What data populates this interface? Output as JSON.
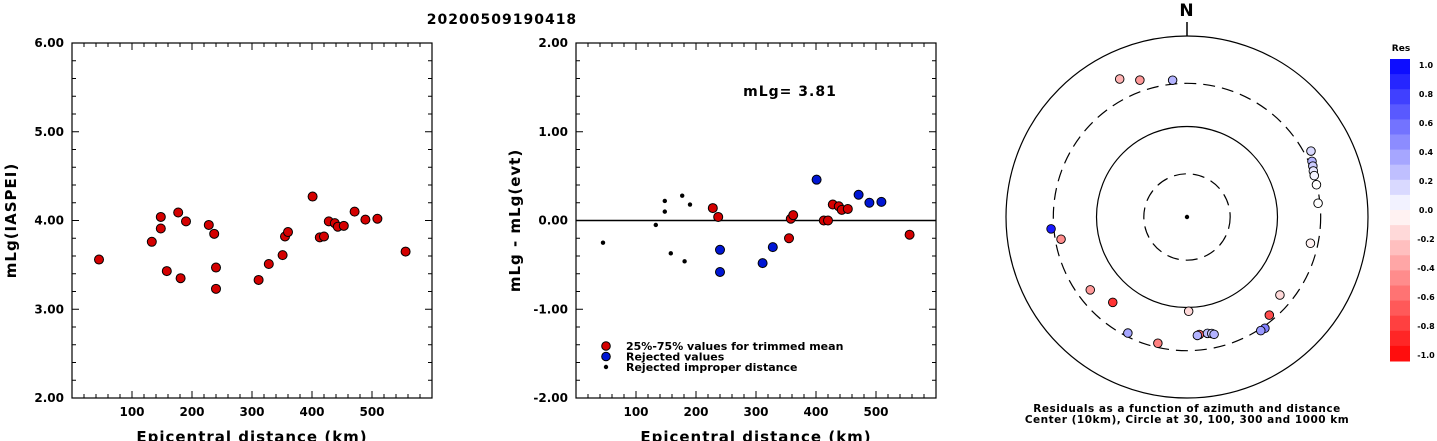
{
  "title": "20200509190418",
  "chart_data": [
    {
      "type": "scatter",
      "name": "mLg(IASPEI) vs distance",
      "xlabel": "Epicentral distance (km)",
      "ylabel": "mLg(IASPEI)",
      "xlim": [
        0,
        600
      ],
      "ylim": [
        2.0,
        6.0
      ],
      "xticks": [
        "100",
        "200",
        "300",
        "400",
        "500"
      ],
      "yticks": [
        "2.00",
        "3.00",
        "4.00",
        "5.00",
        "6.00"
      ],
      "marker_color": "#d40000",
      "points": [
        {
          "x": 45,
          "y": 3.56
        },
        {
          "x": 133,
          "y": 3.76
        },
        {
          "x": 148,
          "y": 4.04
        },
        {
          "x": 148,
          "y": 3.91
        },
        {
          "x": 158,
          "y": 3.43
        },
        {
          "x": 177,
          "y": 4.09
        },
        {
          "x": 181,
          "y": 3.35
        },
        {
          "x": 190,
          "y": 3.99
        },
        {
          "x": 228,
          "y": 3.95
        },
        {
          "x": 237,
          "y": 3.85
        },
        {
          "x": 240,
          "y": 3.47
        },
        {
          "x": 240,
          "y": 3.23
        },
        {
          "x": 311,
          "y": 3.33
        },
        {
          "x": 328,
          "y": 3.51
        },
        {
          "x": 351,
          "y": 3.61
        },
        {
          "x": 355,
          "y": 3.82
        },
        {
          "x": 360,
          "y": 3.87
        },
        {
          "x": 401,
          "y": 4.27
        },
        {
          "x": 413,
          "y": 3.81
        },
        {
          "x": 420,
          "y": 3.82
        },
        {
          "x": 428,
          "y": 3.99
        },
        {
          "x": 438,
          "y": 3.97
        },
        {
          "x": 443,
          "y": 3.93
        },
        {
          "x": 453,
          "y": 3.94
        },
        {
          "x": 471,
          "y": 4.1
        },
        {
          "x": 489,
          "y": 4.01
        },
        {
          "x": 509,
          "y": 4.02
        },
        {
          "x": 556,
          "y": 3.65
        }
      ]
    },
    {
      "type": "scatter",
      "name": "mLg residuals vs distance",
      "xlabel": "Epicentral distance (km)",
      "ylabel": "mLg - mLg(evt)",
      "xlim": [
        0,
        600
      ],
      "ylim": [
        -2.0,
        2.0
      ],
      "xticks": [
        "100",
        "200",
        "300",
        "400",
        "500"
      ],
      "yticks": [
        "-2.00",
        "-1.00",
        "0.00",
        "1.00",
        "2.00"
      ],
      "annotation": "mLg= 3.81",
      "legend": [
        {
          "label": "25%-75% values for trimmed mean",
          "color": "#d40000",
          "marker": "circle"
        },
        {
          "label": "Rejected values",
          "color": "#0016d4",
          "marker": "circle"
        },
        {
          "label": "Rejected improper distance",
          "color": "#000000",
          "marker": "dot"
        }
      ],
      "series": [
        {
          "name": "25%-75% values for trimmed mean",
          "color": "#d40000",
          "points": [
            {
              "x": 228,
              "y": 0.14
            },
            {
              "x": 237,
              "y": 0.04
            },
            {
              "x": 355,
              "y": -0.2
            },
            {
              "x": 358,
              "y": 0.02
            },
            {
              "x": 362,
              "y": 0.06
            },
            {
              "x": 413,
              "y": 0.0
            },
            {
              "x": 420,
              "y": 0.0
            },
            {
              "x": 428,
              "y": 0.18
            },
            {
              "x": 438,
              "y": 0.16
            },
            {
              "x": 443,
              "y": 0.12
            },
            {
              "x": 453,
              "y": 0.13
            },
            {
              "x": 556,
              "y": -0.16
            }
          ]
        },
        {
          "name": "Rejected values",
          "color": "#0016d4",
          "points": [
            {
              "x": 240,
              "y": -0.33
            },
            {
              "x": 240,
              "y": -0.58
            },
            {
              "x": 311,
              "y": -0.48
            },
            {
              "x": 328,
              "y": -0.3
            },
            {
              "x": 401,
              "y": 0.46
            },
            {
              "x": 471,
              "y": 0.29
            },
            {
              "x": 489,
              "y": 0.2
            },
            {
              "x": 509,
              "y": 0.21
            }
          ]
        },
        {
          "name": "Rejected improper distance",
          "color": "#000000",
          "points": [
            {
              "x": 45,
              "y": -0.25
            },
            {
              "x": 133,
              "y": -0.05
            },
            {
              "x": 148,
              "y": 0.22
            },
            {
              "x": 148,
              "y": 0.1
            },
            {
              "x": 158,
              "y": -0.37
            },
            {
              "x": 177,
              "y": 0.28
            },
            {
              "x": 181,
              "y": -0.46
            },
            {
              "x": 190,
              "y": 0.18
            }
          ]
        }
      ]
    },
    {
      "type": "polar-scatter",
      "name": "Residuals by azimuth and distance",
      "north_label": "N",
      "caption_line1": "Residuals as a function of azimuth and distance",
      "caption_line2": "Center (10km), Circle at 30, 100, 300 and 1000 km",
      "rings_km": [
        30,
        100,
        300,
        1000
      ],
      "ring_styles": [
        "dashed",
        "solid",
        "dashed",
        "solid"
      ],
      "points": [
        {
          "az": 334,
          "dist": 497,
          "res": -0.3
        },
        {
          "az": 341,
          "dist": 398,
          "res": -0.4
        },
        {
          "az": 354,
          "dist": 331,
          "res": 0.3
        },
        {
          "az": 62,
          "dist": 356,
          "res": 0.15
        },
        {
          "az": 66,
          "dist": 325,
          "res": 0.3
        },
        {
          "az": 68,
          "dist": 316,
          "res": 0.2
        },
        {
          "az": 70,
          "dist": 306,
          "res": 0.1
        },
        {
          "az": 72,
          "dist": 301,
          "res": 0.05
        },
        {
          "az": 76,
          "dist": 298,
          "res": 0.0
        },
        {
          "az": 84,
          "dist": 286,
          "res": 0.0
        },
        {
          "az": 102,
          "dist": 248,
          "res": -0.05
        },
        {
          "az": 179,
          "dist": 110,
          "res": -0.15
        },
        {
          "az": 130,
          "dist": 219,
          "res": -0.15
        },
        {
          "az": 140,
          "dist": 260,
          "res": -0.7
        },
        {
          "az": 145,
          "dist": 317,
          "res": 0.5
        },
        {
          "az": 147,
          "dist": 314,
          "res": 0.4
        },
        {
          "az": 174,
          "dist": 202,
          "res": -0.6
        },
        {
          "az": 175,
          "dist": 206,
          "res": 0.3
        },
        {
          "az": 170,
          "dist": 202,
          "res": 0.25
        },
        {
          "az": 168,
          "dist": 207,
          "res": 0.2
        },
        {
          "az": 167,
          "dist": 214,
          "res": 0.3
        },
        {
          "az": 193,
          "dist": 270,
          "res": -0.5
        },
        {
          "az": 207,
          "dist": 275,
          "res": 0.35
        },
        {
          "az": 221,
          "dist": 178,
          "res": -0.8
        },
        {
          "az": 233,
          "dist": 218,
          "res": -0.4
        },
        {
          "az": 260,
          "dist": 259,
          "res": -0.45
        },
        {
          "az": 265,
          "dist": 322,
          "res": 0.9
        }
      ],
      "colorbar": {
        "title": "Res",
        "ticks": [
          "1.0",
          "0.8",
          "0.6",
          "0.4",
          "0.2",
          "0.0",
          "-0.2",
          "-0.4",
          "-0.6",
          "-0.8",
          "-1.0"
        ],
        "range": [
          -1.0,
          1.0
        ]
      }
    }
  ]
}
